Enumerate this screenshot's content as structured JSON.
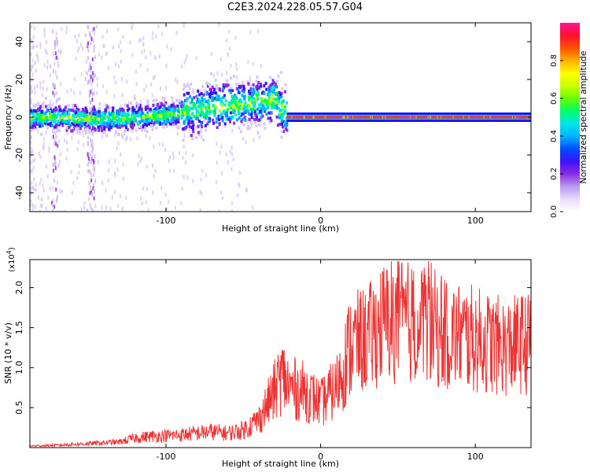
{
  "page": {
    "title": "C2E3.2024.228.05.57.G04"
  },
  "chart_data": [
    {
      "type": "heatmap",
      "title": "C2E3.2024.228.05.57.G04",
      "xlabel": "Height of straight line (km)",
      "ylabel": "Frequency (Hz)",
      "xlim": [
        -188,
        136
      ],
      "ylim": [
        -50,
        50
      ],
      "x_ticks": [
        -100,
        0,
        100
      ],
      "y_ticks": [
        -40,
        -20,
        0,
        20,
        40
      ],
      "colorbar": {
        "label": "Normalized spectral amplitude",
        "range": [
          0.0,
          1.0
        ],
        "ticks": [
          0.0,
          0.2,
          0.4,
          0.6,
          0.8
        ],
        "colors": [
          "#ffffff",
          "#d8c8f8",
          "#8a2be2",
          "#3b12ff",
          "#00a0ff",
          "#00e5ee",
          "#00ff40",
          "#9bff00",
          "#ffff00",
          "#ffa500",
          "#ff3000",
          "#ff1493"
        ]
      },
      "ridge_center": [
        {
          "x": -188,
          "y": 0
        },
        {
          "x": -140,
          "y": -1
        },
        {
          "x": -100,
          "y": 1
        },
        {
          "x": -80,
          "y": 4
        },
        {
          "x": -60,
          "y": 6
        },
        {
          "x": -40,
          "y": 8
        },
        {
          "x": -30,
          "y": 10
        },
        {
          "x": -25,
          "y": 3
        },
        {
          "x": -20,
          "y": 1
        },
        {
          "x": 0,
          "y": 0
        },
        {
          "x": 136,
          "y": 0
        }
      ]
    },
    {
      "type": "line",
      "title": "",
      "xlabel": "Height of straight line (km)",
      "ylabel": "SNR (10 * v/v)",
      "y_multiplier": "(x10^4)",
      "xlim": [
        -188,
        136
      ],
      "ylim": [
        0,
        2.35
      ],
      "x_ticks": [
        -100,
        0,
        100
      ],
      "y_ticks": [
        0.5,
        1.0,
        1.5,
        2.0
      ],
      "series": [
        {
          "color": "#ee3333",
          "x": [
            -188,
            -170,
            -150,
            -130,
            -120,
            -110,
            -100,
            -90,
            -80,
            -70,
            -60,
            -50,
            -40,
            -30,
            -25,
            -20,
            -10,
            0,
            10,
            20,
            30,
            40,
            50,
            60,
            70,
            80,
            90,
            100,
            110,
            120,
            130,
            136
          ],
          "y": [
            0.02,
            0.03,
            0.05,
            0.07,
            0.12,
            0.14,
            0.15,
            0.16,
            0.18,
            0.2,
            0.18,
            0.22,
            0.35,
            0.7,
            0.9,
            0.75,
            0.7,
            0.55,
            0.75,
            1.3,
            1.35,
            1.55,
            1.6,
            1.55,
            1.55,
            1.4,
            1.4,
            1.35,
            1.3,
            1.25,
            1.3,
            1.3
          ]
        }
      ]
    }
  ]
}
